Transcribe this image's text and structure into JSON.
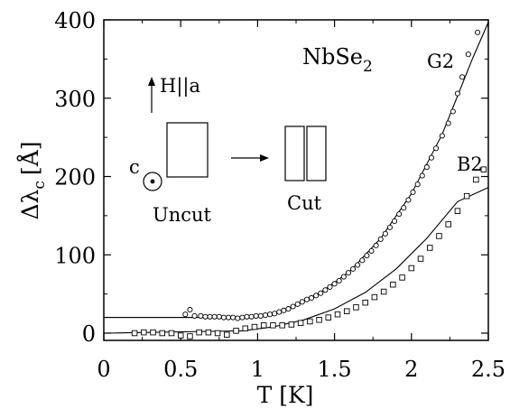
{
  "chart_data": {
    "type": "scatter",
    "title": "NbSe2",
    "xlabel": "T [K]",
    "ylabel": "Δλc [Å]",
    "xlim": [
      0,
      2.5
    ],
    "ylim": [
      0,
      400
    ],
    "xticks": [
      "0",
      "0.5",
      "1",
      "1.5",
      "2",
      "2.5"
    ],
    "yticks": [
      "0",
      "100",
      "200",
      "300",
      "400"
    ],
    "grid": false,
    "legend": "none",
    "series": [
      {
        "name": "G2",
        "marker": "circle",
        "points": [
          [
            0.53,
            24
          ],
          [
            0.56,
            30
          ],
          [
            0.59,
            22
          ],
          [
            0.63,
            22
          ],
          [
            0.66,
            21
          ],
          [
            0.69,
            21
          ],
          [
            0.72,
            21
          ],
          [
            0.75,
            21
          ],
          [
            0.78,
            20
          ],
          [
            0.81,
            20
          ],
          [
            0.84,
            20
          ],
          [
            0.87,
            19
          ],
          [
            0.9,
            20
          ],
          [
            0.93,
            21
          ],
          [
            0.96,
            21
          ],
          [
            0.99,
            22
          ],
          [
            1.02,
            22
          ],
          [
            1.05,
            23
          ],
          [
            1.08,
            24
          ],
          [
            1.11,
            25
          ],
          [
            1.14,
            27
          ],
          [
            1.17,
            29
          ],
          [
            1.2,
            31
          ],
          [
            1.23,
            34
          ],
          [
            1.26,
            37
          ],
          [
            1.29,
            40
          ],
          [
            1.32,
            43
          ],
          [
            1.35,
            45
          ],
          [
            1.38,
            48
          ],
          [
            1.41,
            51
          ],
          [
            1.44,
            55
          ],
          [
            1.47,
            59
          ],
          [
            1.5,
            63
          ],
          [
            1.53,
            67
          ],
          [
            1.56,
            72
          ],
          [
            1.59,
            77
          ],
          [
            1.62,
            82
          ],
          [
            1.65,
            87
          ],
          [
            1.68,
            93
          ],
          [
            1.71,
            99
          ],
          [
            1.74,
            105
          ],
          [
            1.77,
            112
          ],
          [
            1.8,
            120
          ],
          [
            1.83,
            127
          ],
          [
            1.86,
            135
          ],
          [
            1.89,
            143
          ],
          [
            1.92,
            152
          ],
          [
            1.95,
            160
          ],
          [
            1.98,
            170
          ],
          [
            2.01,
            180
          ],
          [
            2.04,
            190
          ],
          [
            2.07,
            201
          ],
          [
            2.1,
            212
          ],
          [
            2.13,
            224
          ],
          [
            2.16,
            236
          ],
          [
            2.2,
            252
          ],
          [
            2.24,
            268
          ],
          [
            2.27,
            283
          ],
          [
            2.3,
            306
          ],
          [
            2.33,
            327
          ],
          [
            2.37,
            356
          ],
          [
            2.43,
            384
          ]
        ]
      },
      {
        "name": "B2",
        "marker": "square",
        "points": [
          [
            0.2,
            0
          ],
          [
            0.26,
            1
          ],
          [
            0.32,
            1
          ],
          [
            0.38,
            0
          ],
          [
            0.44,
            0
          ],
          [
            0.5,
            -3
          ],
          [
            0.56,
            -4
          ],
          [
            0.62,
            1
          ],
          [
            0.68,
            1
          ],
          [
            0.74,
            0
          ],
          [
            0.8,
            -2
          ],
          [
            0.86,
            3
          ],
          [
            0.92,
            6
          ],
          [
            0.98,
            8
          ],
          [
            1.04,
            10
          ],
          [
            1.1,
            10
          ],
          [
            1.16,
            10
          ],
          [
            1.22,
            11
          ],
          [
            1.28,
            13
          ],
          [
            1.34,
            15
          ],
          [
            1.4,
            17
          ],
          [
            1.46,
            20
          ],
          [
            1.52,
            24
          ],
          [
            1.58,
            28
          ],
          [
            1.64,
            33
          ],
          [
            1.7,
            39
          ],
          [
            1.76,
            46
          ],
          [
            1.82,
            53
          ],
          [
            1.88,
            62
          ],
          [
            1.94,
            71
          ],
          [
            2.0,
            83
          ],
          [
            2.06,
            95
          ],
          [
            2.12,
            109
          ],
          [
            2.18,
            124
          ],
          [
            2.24,
            139
          ],
          [
            2.3,
            156
          ],
          [
            2.36,
            175
          ],
          [
            2.42,
            196
          ],
          [
            2.47,
            209
          ]
        ]
      }
    ],
    "fits": [
      {
        "series": "G2",
        "baseline": 20,
        "points": [
          [
            0,
            20
          ],
          [
            0.8,
            20
          ],
          [
            1.0,
            21
          ],
          [
            1.2,
            31
          ],
          [
            1.4,
            51
          ],
          [
            1.6,
            79
          ],
          [
            1.8,
            121
          ],
          [
            2.0,
            178
          ],
          [
            2.2,
            254
          ],
          [
            2.4,
            352
          ],
          [
            2.5,
            397
          ]
        ]
      },
      {
        "series": "B2",
        "baseline": 0,
        "points": [
          [
            0,
            0
          ],
          [
            0.9,
            3
          ],
          [
            1.1,
            8
          ],
          [
            1.3,
            17
          ],
          [
            1.5,
            31
          ],
          [
            1.7,
            52
          ],
          [
            1.9,
            82
          ],
          [
            2.1,
            121
          ],
          [
            2.3,
            168
          ],
          [
            2.5,
            186
          ]
        ]
      }
    ],
    "annotations": {
      "series_labels": [
        "G2",
        "B2"
      ],
      "title_main": "NbSe",
      "title_sub": "2",
      "field": "H||a",
      "axis_c": "c",
      "uncut": "Uncut",
      "cut": "Cut"
    }
  },
  "axis_labels": {
    "x_title": "T [K]",
    "y_main": "Δλ",
    "y_sub": "c",
    "y_unit": "[Å]"
  }
}
